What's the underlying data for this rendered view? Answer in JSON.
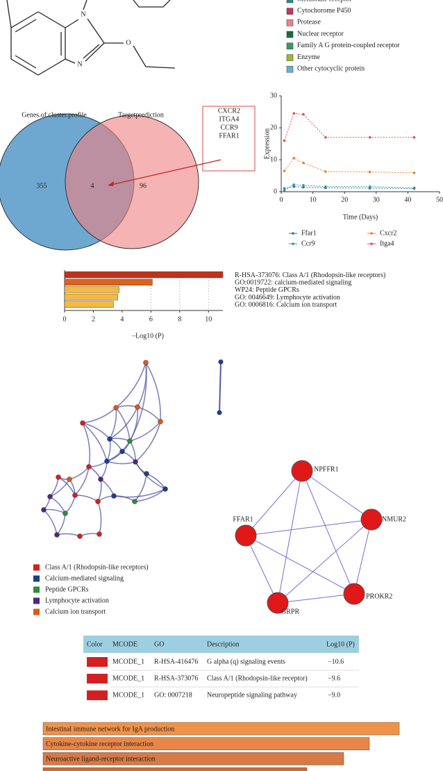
{
  "structure": {
    "atoms": [
      "N",
      "N",
      "O"
    ]
  },
  "target_legend": {
    "items": [
      {
        "label": "Membrane receptor",
        "color": "#2a8a8a"
      },
      {
        "label": "Cytochorome P450",
        "color": "#c8336b"
      },
      {
        "label": "Protease",
        "color": "#e88585"
      },
      {
        "label": "Nuclear receptor",
        "color": "#1e6b3c"
      },
      {
        "label": "Family A G protein-coupled receptor",
        "color": "#3a9a62"
      },
      {
        "label": "Enzyme",
        "color": "#9aba2a"
      },
      {
        "label": "Other cytocyclic protein",
        "color": "#6baed6"
      }
    ]
  },
  "venn": {
    "left_label": "Genes.of.cluster.profile",
    "right_label": "Targetprediction",
    "left_only": 355,
    "overlap": 4,
    "right_only": 96,
    "left_color": "#6ea8d0",
    "right_color": "#f08080",
    "genes": [
      "CXCR2",
      "ITGA4",
      "CCR9",
      "FFAR1"
    ],
    "highlight": "FFAR1"
  },
  "chart_data": [
    {
      "type": "line",
      "x_label": "Time (Days)",
      "y_label": "Expression",
      "x": [
        1,
        4,
        7,
        14,
        28,
        42
      ],
      "xlim": [
        0,
        50
      ],
      "xticks": [
        0,
        10,
        20,
        30,
        40,
        50
      ],
      "ylim": [
        0,
        30
      ],
      "yticks": [
        0,
        10,
        20,
        30
      ],
      "series": [
        {
          "name": "Ffar1",
          "color": "#2f6fba",
          "values": [
            1.0,
            1.6,
            1.4,
            1.2,
            1.1,
            1.0
          ]
        },
        {
          "name": "Cxcr2",
          "color": "#f07f26",
          "values": [
            6.5,
            10.5,
            9,
            6.3,
            6.2,
            5.9
          ]
        },
        {
          "name": "Ccr9",
          "color": "#2a9d8f",
          "values": [
            0.5,
            2.2,
            2,
            1.6,
            1.6,
            1.2
          ]
        },
        {
          "name": "Itga4",
          "color": "#e84a4a",
          "values": [
            16,
            24.5,
            24.2,
            17,
            17,
            17
          ]
        }
      ]
    },
    {
      "type": "hbar",
      "x_label": "–Log10 (P)",
      "categories": [
        "R-HSA-373076: Class A/1 (Rhodopsin-like receptors)",
        "GO:0019722: calcium-mediated signaling",
        "WP24: Peptide GPCRs",
        "GO: 0046649: Lymphocyte activation",
        "GO: 0006816: Calcium ion transport"
      ],
      "values": [
        11,
        6.1,
        3.8,
        3.7,
        3.4
      ],
      "colors": [
        "#c0321a",
        "#e0611a",
        "#f5b942",
        "#f5b942",
        "#f5b942"
      ],
      "xlim": [
        0,
        11
      ],
      "xticks": [
        0,
        2,
        4,
        6,
        8,
        10
      ],
      "grid": true
    },
    {
      "type": "hbar",
      "categories": [
        "Intestinal immune network for IgA production",
        "Cytokine-cytokine receptor interaction",
        "Neuroactive ligand-receptor interaction",
        null
      ],
      "values": [
        5.13,
        4.7,
        4.33,
        3.8
      ],
      "colors": [
        "#f0934a",
        "#e8864a",
        "#d77a45",
        "#c96d40"
      ],
      "xlim": [
        0,
        6
      ]
    }
  ],
  "network": {
    "legend": [
      {
        "label": "Class A/1 (Rhodopsin-like receptors)",
        "color": "#d42020"
      },
      {
        "label": "Calcium-mediated signaling",
        "color": "#1b3f8b"
      },
      {
        "label": "Peptide GPCRs",
        "color": "#2e8b3e"
      },
      {
        "label": "Lymphocyte activation",
        "color": "#4b2a7a"
      },
      {
        "label": "Calcium ion transport",
        "color": "#e0561a"
      }
    ]
  },
  "ppi": {
    "nodes": [
      "NPFFR1",
      "NMUR2",
      "PROKR2",
      "GRPR",
      "FFAR1"
    ],
    "color": "#e01818"
  },
  "table": {
    "header": [
      "Color",
      "MCODE",
      "GO",
      "Description",
      "Log10 (P)"
    ],
    "header_color": "#9ecfe0",
    "row_color": "#d42020",
    "rows": [
      [
        "MCODE_1",
        "R-HSA-416476",
        "G alpha (q) signaling events",
        "−10.6"
      ],
      [
        "MCODE_1",
        "R-HSA-373076",
        "Class A/1 (Rhodopsin-like receptor)",
        "−9.6"
      ],
      [
        "MCODE_1",
        "GO: 0007218",
        "Neuropeptide signaling pathway",
        "−9.0"
      ]
    ]
  }
}
